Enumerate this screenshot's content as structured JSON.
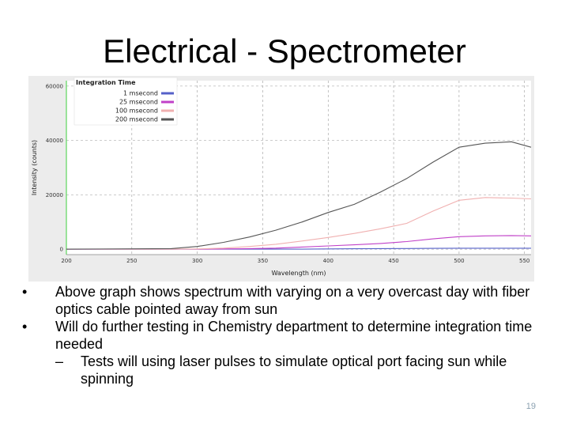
{
  "slide": {
    "title": "Electrical - Spectrometer",
    "page_number": "19"
  },
  "bullets": [
    {
      "marker": "•",
      "text": "Above graph shows spectrum with varying on a very overcast day with fiber optics cable pointed away from sun"
    },
    {
      "marker": "•",
      "text": "Will do further testing in Chemistry department to determine integration time needed"
    }
  ],
  "sub_bullets": [
    {
      "marker": "–",
      "text": "Tests will using laser pulses to simulate optical port facing sun while spinning"
    }
  ],
  "chart_data": {
    "type": "line",
    "xlabel": "Wavelength (nm)",
    "ylabel": "Intensity (counts)",
    "xlim": [
      200,
      555
    ],
    "ylim": [
      -2000,
      62000
    ],
    "x_ticks": [
      200,
      250,
      300,
      350,
      400,
      450,
      500,
      550
    ],
    "y_ticks": [
      0,
      20000,
      40000,
      60000
    ],
    "grid": "dashed",
    "legend_title": "Integration Time",
    "legend_position": "top-left",
    "x": [
      200,
      280,
      300,
      320,
      340,
      360,
      380,
      400,
      420,
      440,
      460,
      480,
      500,
      520,
      540,
      555
    ],
    "series": [
      {
        "name": "1 msecond",
        "color": "#5560c8",
        "values": [
          0,
          0,
          0,
          0,
          0,
          0,
          0,
          100,
          150,
          200,
          250,
          300,
          350,
          350,
          350,
          350
        ]
      },
      {
        "name": "25 msecond",
        "color": "#c040c8",
        "values": [
          0,
          0,
          0,
          100,
          200,
          400,
          800,
          1200,
          1600,
          2100,
          2800,
          3800,
          4600,
          4900,
          5000,
          4900
        ]
      },
      {
        "name": "100 msecond",
        "color": "#f0b0b0",
        "values": [
          0,
          0,
          100,
          400,
          1000,
          1800,
          3000,
          4300,
          5800,
          7500,
          9500,
          14000,
          18000,
          19000,
          18800,
          18500
        ]
      },
      {
        "name": "200 msecond",
        "color": "#555555",
        "values": [
          0,
          200,
          1000,
          2500,
          4500,
          7000,
          10000,
          13500,
          16500,
          21000,
          26000,
          32000,
          37500,
          39000,
          39500,
          37500
        ]
      }
    ]
  },
  "colors": {
    "plot_background": "#ffffff",
    "panel_background": "#ececec",
    "green_axis": "#5cd65c",
    "grid": "#9a9a9a",
    "legend_background": "#ffffff"
  }
}
